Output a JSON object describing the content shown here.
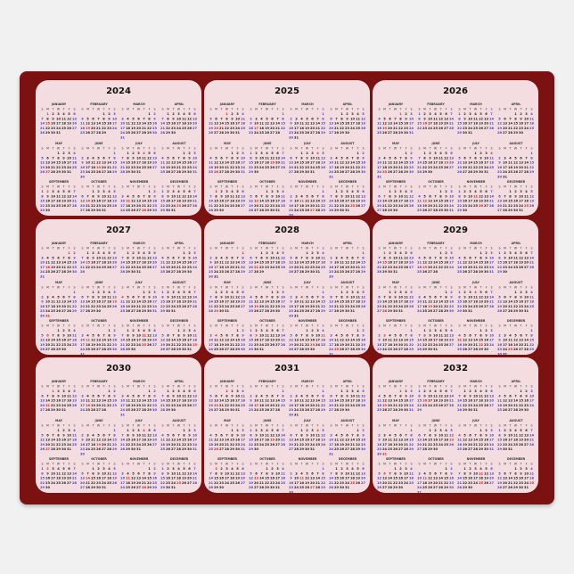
{
  "years": [
    2024,
    2025,
    2026,
    2027,
    2028,
    2029,
    2030,
    2031,
    2032
  ],
  "months": [
    "JANUARY",
    "FEBRUARY",
    "MARCH",
    "APRIL",
    "MAY",
    "JUNE",
    "JULY",
    "AUGUST",
    "SEPTEMBER",
    "OCTOBER",
    "NOVEMBER",
    "DECEMBER"
  ],
  "weekdays": [
    "S",
    "M",
    "T",
    "W",
    "T",
    "F",
    "S"
  ],
  "colors": {
    "mat": "#7b1111",
    "panel": "#f3dde0",
    "weekday": "#222222",
    "weekend": "#4a3fc0",
    "holiday": "#e0201c",
    "title": "#111111"
  }
}
